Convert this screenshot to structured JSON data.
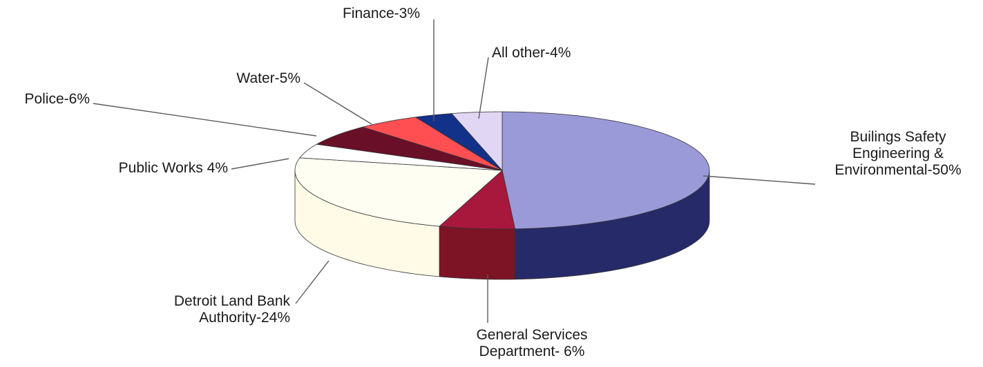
{
  "chart_data": {
    "type": "pie",
    "style": "3d-exploded-none",
    "start_angle_deg": 90,
    "direction": "clockwise",
    "legend": "none",
    "slices": [
      {
        "id": "bse",
        "value": 50,
        "label_lines": [
          "Builings Safety",
          "Engineering &",
          "Environmental-50%"
        ],
        "top_color": "#9a9ad8",
        "side_color": "#272a68"
      },
      {
        "id": "gsd",
        "value": 6,
        "label_lines": [
          "General Services",
          "Department- 6%"
        ],
        "top_color": "#a8173c",
        "side_color": "#7c1426"
      },
      {
        "id": "dlba",
        "value": 24,
        "label_lines": [
          "Detroit Land Bank",
          "Authority-24%"
        ],
        "top_color": "#fffef2",
        "side_color": "#fffbe6"
      },
      {
        "id": "pw",
        "value": 4,
        "label_lines": [
          "Public Works 4%"
        ],
        "top_color": "#ffffff",
        "side_color": "#f7f7ff"
      },
      {
        "id": "police",
        "value": 6,
        "label_lines": [
          "Police-6%"
        ],
        "top_color": "#6a0f28",
        "side_color": "#4c0a1c"
      },
      {
        "id": "water",
        "value": 5,
        "label_lines": [
          "Water-5%"
        ],
        "top_color": "#ff4f52",
        "side_color": "#c83236"
      },
      {
        "id": "finance",
        "value": 3,
        "label_lines": [
          "Finance-3%"
        ],
        "top_color": "#123189",
        "side_color": "#0b1e55"
      },
      {
        "id": "other",
        "value": 4,
        "label_lines": [
          "All other-4%"
        ],
        "top_color": "#e1d7f5",
        "side_color": "#bdb2d6"
      }
    ]
  }
}
